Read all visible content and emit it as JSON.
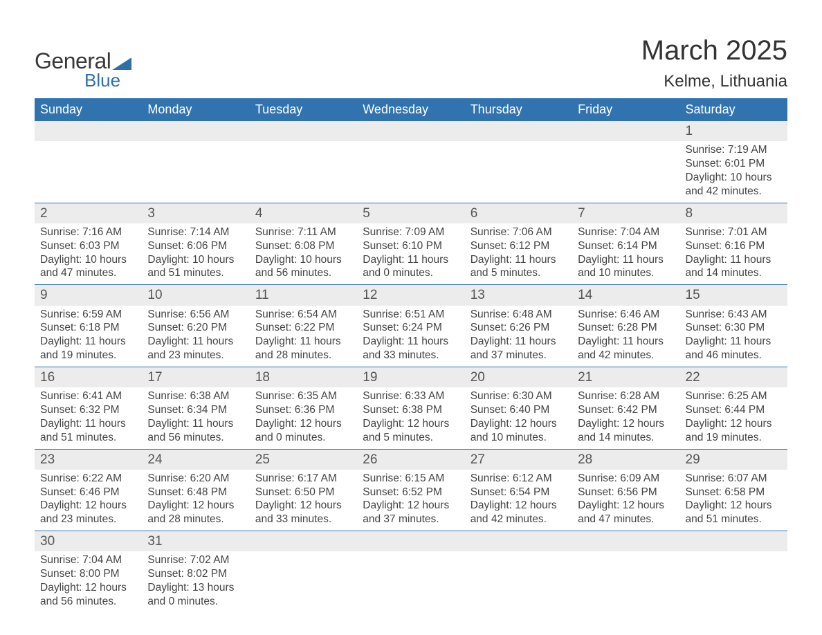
{
  "logo": {
    "text1": "General",
    "text2": "Blue"
  },
  "title": "March 2025",
  "location": "Kelme, Lithuania",
  "columns": [
    "Sunday",
    "Monday",
    "Tuesday",
    "Wednesday",
    "Thursday",
    "Friday",
    "Saturday"
  ],
  "header_bg": "#3173af",
  "header_fg": "#ffffff",
  "daynum_bg": "#ececec",
  "rule_color": "#3173af",
  "weeks": [
    [
      null,
      null,
      null,
      null,
      null,
      null,
      {
        "n": "1",
        "sr": "7:19 AM",
        "ss": "6:01 PM",
        "dh": "10",
        "dm": "42"
      }
    ],
    [
      {
        "n": "2",
        "sr": "7:16 AM",
        "ss": "6:03 PM",
        "dh": "10",
        "dm": "47"
      },
      {
        "n": "3",
        "sr": "7:14 AM",
        "ss": "6:06 PM",
        "dh": "10",
        "dm": "51"
      },
      {
        "n": "4",
        "sr": "7:11 AM",
        "ss": "6:08 PM",
        "dh": "10",
        "dm": "56"
      },
      {
        "n": "5",
        "sr": "7:09 AM",
        "ss": "6:10 PM",
        "dh": "11",
        "dm": "0"
      },
      {
        "n": "6",
        "sr": "7:06 AM",
        "ss": "6:12 PM",
        "dh": "11",
        "dm": "5"
      },
      {
        "n": "7",
        "sr": "7:04 AM",
        "ss": "6:14 PM",
        "dh": "11",
        "dm": "10"
      },
      {
        "n": "8",
        "sr": "7:01 AM",
        "ss": "6:16 PM",
        "dh": "11",
        "dm": "14"
      }
    ],
    [
      {
        "n": "9",
        "sr": "6:59 AM",
        "ss": "6:18 PM",
        "dh": "11",
        "dm": "19"
      },
      {
        "n": "10",
        "sr": "6:56 AM",
        "ss": "6:20 PM",
        "dh": "11",
        "dm": "23"
      },
      {
        "n": "11",
        "sr": "6:54 AM",
        "ss": "6:22 PM",
        "dh": "11",
        "dm": "28"
      },
      {
        "n": "12",
        "sr": "6:51 AM",
        "ss": "6:24 PM",
        "dh": "11",
        "dm": "33"
      },
      {
        "n": "13",
        "sr": "6:48 AM",
        "ss": "6:26 PM",
        "dh": "11",
        "dm": "37"
      },
      {
        "n": "14",
        "sr": "6:46 AM",
        "ss": "6:28 PM",
        "dh": "11",
        "dm": "42"
      },
      {
        "n": "15",
        "sr": "6:43 AM",
        "ss": "6:30 PM",
        "dh": "11",
        "dm": "46"
      }
    ],
    [
      {
        "n": "16",
        "sr": "6:41 AM",
        "ss": "6:32 PM",
        "dh": "11",
        "dm": "51"
      },
      {
        "n": "17",
        "sr": "6:38 AM",
        "ss": "6:34 PM",
        "dh": "11",
        "dm": "56"
      },
      {
        "n": "18",
        "sr": "6:35 AM",
        "ss": "6:36 PM",
        "dh": "12",
        "dm": "0"
      },
      {
        "n": "19",
        "sr": "6:33 AM",
        "ss": "6:38 PM",
        "dh": "12",
        "dm": "5"
      },
      {
        "n": "20",
        "sr": "6:30 AM",
        "ss": "6:40 PM",
        "dh": "12",
        "dm": "10"
      },
      {
        "n": "21",
        "sr": "6:28 AM",
        "ss": "6:42 PM",
        "dh": "12",
        "dm": "14"
      },
      {
        "n": "22",
        "sr": "6:25 AM",
        "ss": "6:44 PM",
        "dh": "12",
        "dm": "19"
      }
    ],
    [
      {
        "n": "23",
        "sr": "6:22 AM",
        "ss": "6:46 PM",
        "dh": "12",
        "dm": "23"
      },
      {
        "n": "24",
        "sr": "6:20 AM",
        "ss": "6:48 PM",
        "dh": "12",
        "dm": "28"
      },
      {
        "n": "25",
        "sr": "6:17 AM",
        "ss": "6:50 PM",
        "dh": "12",
        "dm": "33"
      },
      {
        "n": "26",
        "sr": "6:15 AM",
        "ss": "6:52 PM",
        "dh": "12",
        "dm": "37"
      },
      {
        "n": "27",
        "sr": "6:12 AM",
        "ss": "6:54 PM",
        "dh": "12",
        "dm": "42"
      },
      {
        "n": "28",
        "sr": "6:09 AM",
        "ss": "6:56 PM",
        "dh": "12",
        "dm": "47"
      },
      {
        "n": "29",
        "sr": "6:07 AM",
        "ss": "6:58 PM",
        "dh": "12",
        "dm": "51"
      }
    ],
    [
      {
        "n": "30",
        "sr": "7:04 AM",
        "ss": "8:00 PM",
        "dh": "12",
        "dm": "56"
      },
      {
        "n": "31",
        "sr": "7:02 AM",
        "ss": "8:02 PM",
        "dh": "13",
        "dm": "0"
      },
      null,
      null,
      null,
      null,
      null
    ]
  ],
  "labels": {
    "sunrise": "Sunrise:",
    "sunset": "Sunset:",
    "daylight": "Daylight:",
    "hours": "hours",
    "and": "and",
    "minutes": "minutes."
  }
}
